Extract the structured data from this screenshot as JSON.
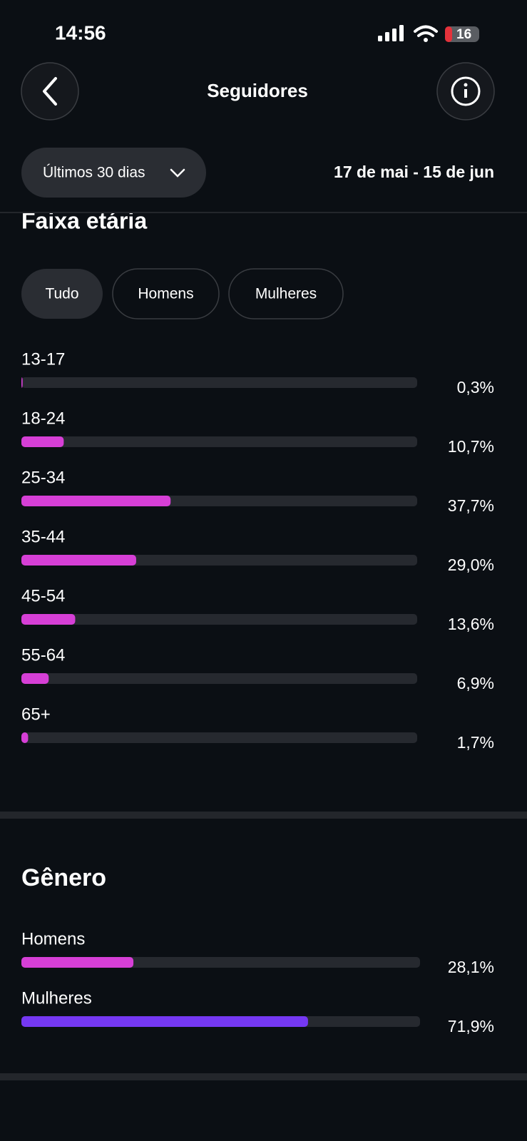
{
  "status_bar": {
    "time": "14:56",
    "battery": "16"
  },
  "header": {
    "title": "Seguidores"
  },
  "filter": {
    "period": "Últimos 30 dias",
    "date_range": "17 de mai - 15 de jun"
  },
  "chart_data": [
    {
      "type": "bar",
      "title": "Faixa etária",
      "tabs": [
        "Tudo",
        "Homens",
        "Mulheres"
      ],
      "categories": [
        "13-17",
        "18-24",
        "25-34",
        "35-44",
        "45-54",
        "55-64",
        "65+"
      ],
      "values": [
        0.3,
        10.7,
        37.7,
        29.0,
        13.6,
        6.9,
        1.7
      ],
      "value_labels": [
        "0,3%",
        "10,7%",
        "37,7%",
        "29,0%",
        "13,6%",
        "6,9%",
        "1,7%"
      ],
      "color": "#d63fd6",
      "xlim": [
        0,
        100
      ]
    },
    {
      "type": "bar",
      "title": "Gênero",
      "categories": [
        "Homens",
        "Mulheres"
      ],
      "values": [
        28.1,
        71.9
      ],
      "value_labels": [
        "28,1%",
        "71,9%"
      ],
      "colors": [
        "#d63fd6",
        "#7538f2"
      ],
      "xlim": [
        0,
        100
      ]
    }
  ]
}
